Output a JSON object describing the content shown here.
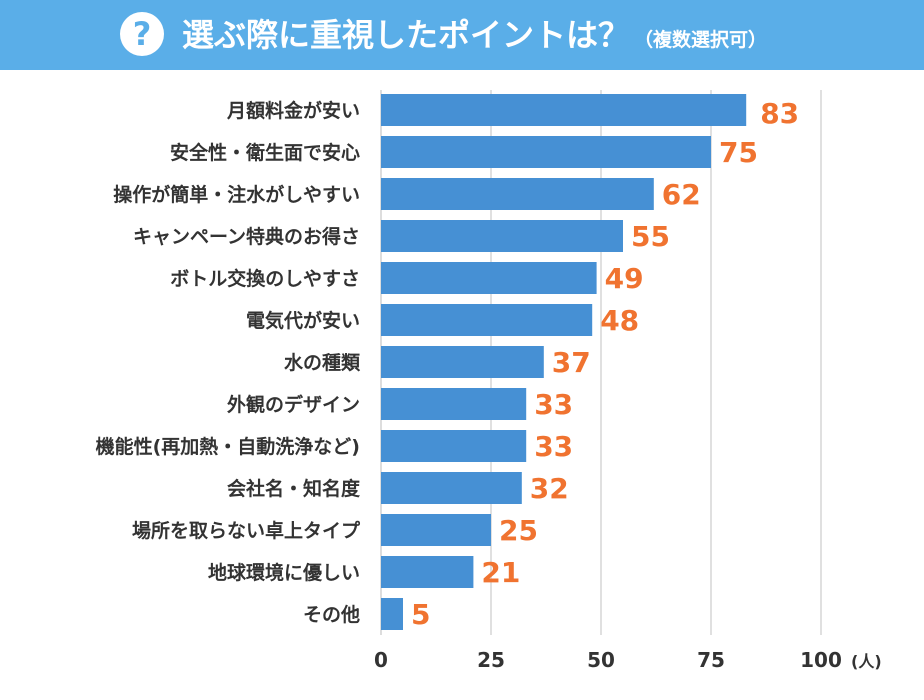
{
  "header": {
    "icon": "question-icon",
    "icon_text": "?",
    "title": "選ぶ際に重視したポイントは？",
    "subtitle": "（複数選択可）",
    "color": "#5aaee8"
  },
  "chart_data": {
    "type": "bar",
    "orientation": "horizontal",
    "title": "選ぶ際に重視したポイントは？（複数選択可）",
    "categories": [
      "月額料金が安い",
      "安全性・衛生面で安心",
      "操作が簡単・注水がしやすい",
      "キャンペーン特典のお得さ",
      "ボトル交換のしやすさ",
      "電気代が安い",
      "水の種類",
      "外観のデザイン",
      "機能性(再加熱・自動洗浄など)",
      "会社名・知名度",
      "場所を取らない卓上タイプ",
      "地球環境に優しい",
      "その他"
    ],
    "values": [
      83,
      75,
      62,
      55,
      49,
      48,
      37,
      33,
      33,
      32,
      25,
      21,
      5
    ],
    "xticks": [
      0,
      25,
      50,
      75,
      100
    ],
    "xlim": [
      0,
      100
    ],
    "unit": "(人)",
    "bar_color": "#4690d4",
    "value_color": "#f07330",
    "grid": true
  }
}
